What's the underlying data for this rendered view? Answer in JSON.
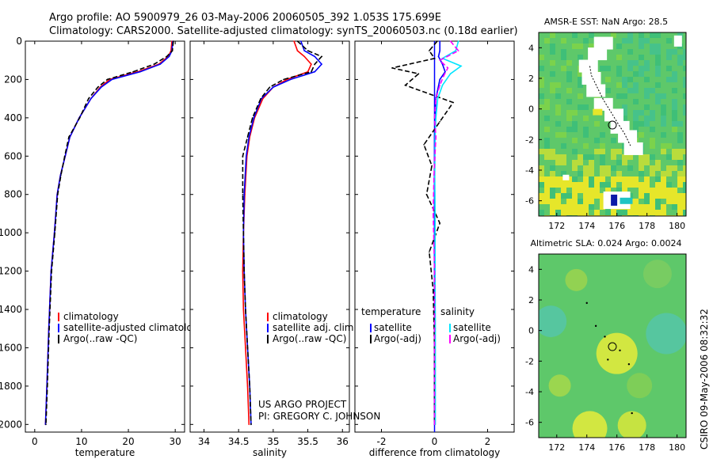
{
  "header": {
    "line1": "Argo profile: AO 5900979_26 03-May-2006 20060505_392 1.053S 175.699E",
    "line2": "Climatology: CARS2000. Satellite-adjusted climatology: synTS_20060503.nc (0.18d earlier)"
  },
  "credits": {
    "project": "US ARGO PROJECT",
    "pi": "PI: GREGORY C. JOHNSON",
    "stamp": "CSIRO 09-May-2006 08:32:32"
  },
  "colors": {
    "climatology": "#ff0000",
    "satellite": "#0000ff",
    "argo": "#000000",
    "salinity_satellite": "#00e5ff",
    "salinity_argo": "#ff00ff"
  },
  "chart_data": [
    {
      "type": "line",
      "id": "temperature",
      "xlabel": "temperature",
      "ylabel": "",
      "xlim": [
        -2,
        32
      ],
      "ylim": [
        2040,
        0
      ],
      "xticks": [
        0,
        10,
        20,
        30
      ],
      "yticks": [
        0,
        200,
        400,
        600,
        800,
        1000,
        1200,
        1400,
        1600,
        1800,
        2000
      ],
      "legend": [
        "climatology",
        "satellite-adjusted climatology",
        "Argo(..raw -QC)"
      ],
      "legend_placement": "lower-right",
      "series": [
        {
          "name": "climatology",
          "color": "#ff0000",
          "style": "solid",
          "x": [
            29.3,
            29.1,
            28.5,
            26.5,
            22,
            16,
            14,
            12,
            9.5,
            7.5,
            6.5,
            5.5,
            4.8,
            4.2,
            3.5,
            3,
            2.6,
            2.3
          ],
          "y": [
            0,
            50,
            80,
            120,
            160,
            200,
            240,
            300,
            400,
            500,
            600,
            700,
            800,
            1000,
            1200,
            1500,
            1800,
            2000
          ]
        },
        {
          "name": "satellite-adjusted climatology",
          "color": "#0000ff",
          "style": "solid",
          "x": [
            29.5,
            29.3,
            28.7,
            26.8,
            22.5,
            16.5,
            14.2,
            12,
            9.5,
            7.5,
            6.5,
            5.5,
            4.8,
            4.2,
            3.5,
            3,
            2.6,
            2.3
          ],
          "y": [
            0,
            50,
            80,
            120,
            160,
            200,
            240,
            300,
            400,
            500,
            600,
            700,
            800,
            1000,
            1200,
            1500,
            1800,
            2000
          ]
        },
        {
          "name": "Argo(..raw -QC)",
          "color": "#000000",
          "style": "dashed",
          "x": [
            29.6,
            29.4,
            28.2,
            25.5,
            21,
            15.5,
            13.5,
            11.5,
            9.6,
            7.3,
            6.4,
            5.6,
            4.9,
            4.3,
            3.6,
            3.1,
            2.7,
            2.4
          ],
          "y": [
            0,
            50,
            80,
            120,
            160,
            200,
            240,
            300,
            400,
            500,
            600,
            700,
            800,
            1000,
            1200,
            1500,
            1800,
            2000
          ]
        }
      ]
    },
    {
      "type": "line",
      "id": "salinity",
      "xlabel": "salinity",
      "xlim": [
        33.8,
        36.1
      ],
      "ylim": [
        2040,
        0
      ],
      "xticks": [
        34,
        34.5,
        35,
        35.5,
        36
      ],
      "legend": [
        "climatology",
        "satellite adj. clim.",
        "Argo(..raw -QC)"
      ],
      "legend_placement": "lower-right",
      "series": [
        {
          "name": "climatology",
          "color": "#ff0000",
          "style": "solid",
          "x": [
            35.3,
            35.35,
            35.45,
            35.55,
            35.5,
            35.2,
            35.0,
            34.85,
            34.73,
            34.66,
            34.62,
            34.59,
            34.57,
            34.56,
            34.57,
            34.6,
            34.63,
            34.65
          ],
          "y": [
            0,
            50,
            80,
            120,
            160,
            200,
            240,
            300,
            400,
            500,
            600,
            800,
            1000,
            1200,
            1400,
            1600,
            1800,
            2000
          ]
        },
        {
          "name": "satellite adj. clim.",
          "color": "#0000ff",
          "style": "solid",
          "x": [
            35.4,
            35.45,
            35.6,
            35.7,
            35.6,
            35.25,
            35.0,
            34.83,
            34.72,
            34.65,
            34.61,
            34.58,
            34.57,
            34.58,
            34.6,
            34.63,
            34.66,
            34.68
          ],
          "y": [
            0,
            50,
            80,
            120,
            160,
            200,
            240,
            300,
            400,
            500,
            600,
            800,
            1000,
            1200,
            1400,
            1600,
            1800,
            2000
          ]
        },
        {
          "name": "Argo(..raw -QC)",
          "color": "#000000",
          "style": "dashed",
          "x": [
            35.35,
            35.5,
            35.7,
            35.6,
            35.55,
            35.15,
            34.95,
            34.82,
            34.7,
            34.63,
            34.56,
            34.56,
            34.57,
            34.58,
            34.6,
            34.63,
            34.66,
            34.68
          ],
          "y": [
            0,
            50,
            80,
            120,
            160,
            200,
            240,
            300,
            400,
            500,
            600,
            800,
            1000,
            1200,
            1400,
            1600,
            1800,
            2000
          ]
        }
      ]
    },
    {
      "type": "line",
      "id": "difference",
      "xlabel": "difference from climatology",
      "xlim": [
        -3,
        3
      ],
      "ylim": [
        2040,
        0
      ],
      "xticks": [
        -2,
        0,
        2
      ],
      "legend": [
        "temperature",
        "satellite",
        "Argo(-adj)",
        "salinity",
        "satellite",
        "Argo(-adj)"
      ],
      "legend_placement": "lower-center",
      "series": [
        {
          "name": "temperature satellite",
          "color": "#0000ff",
          "style": "solid",
          "x": [
            0.2,
            0.2,
            0.15,
            0.3,
            0.4,
            0.2,
            0.05,
            0.02,
            0,
            0,
            0,
            0,
            0,
            0,
            0,
            0
          ],
          "y": [
            0,
            50,
            80,
            120,
            160,
            200,
            300,
            400,
            500,
            700,
            900,
            1200,
            1500,
            1700,
            1900,
            2000
          ]
        },
        {
          "name": "temperature Argo(-adj)",
          "color": "#000000",
          "style": "dashed",
          "x": [
            0.1,
            -0.2,
            0,
            -1.6,
            -0.6,
            -1.1,
            0.7,
            0.2,
            -0.4,
            -0.1,
            -0.3,
            0.2,
            -0.2,
            -0.05,
            0,
            0
          ],
          "y": [
            0,
            50,
            90,
            140,
            170,
            230,
            320,
            420,
            540,
            650,
            800,
            950,
            1100,
            1300,
            1600,
            2000
          ]
        },
        {
          "name": "salinity satellite",
          "color": "#00e5ff",
          "style": "solid",
          "x": [
            0.9,
            0.8,
            0.3,
            1.0,
            0.6,
            0.3,
            0.12,
            0.05,
            0.02,
            0.01,
            0.02,
            0.02,
            0.03,
            0.03,
            0.03,
            0.03
          ],
          "y": [
            0,
            50,
            90,
            130,
            170,
            230,
            300,
            400,
            500,
            700,
            900,
            1200,
            1500,
            1700,
            1900,
            2000
          ]
        },
        {
          "name": "salinity Argo(-adj)",
          "color": "#ff00ff",
          "style": "dashed",
          "x": [
            0.6,
            0.9,
            0.2,
            0.5,
            0.35,
            0.2,
            0.05,
            0.0,
            0.05,
            -0.02,
            -0.05,
            0.0,
            0.0,
            0.0,
            0.0,
            0.0
          ],
          "y": [
            0,
            50,
            100,
            140,
            180,
            230,
            300,
            400,
            500,
            700,
            900,
            1200,
            1500,
            1700,
            1900,
            2000
          ]
        }
      ]
    },
    {
      "type": "heatmap",
      "id": "sst_map",
      "title": "AMSR-E SST: NaN Argo: 28.5",
      "xlim": [
        170.8,
        180.6
      ],
      "ylim": [
        -7,
        5
      ],
      "xticks": [
        172,
        174,
        176,
        178,
        180
      ],
      "yticks": [
        -6,
        -4,
        -2,
        0,
        2,
        4
      ],
      "argo_position": {
        "lon": 175.699,
        "lat": -1.053
      }
    },
    {
      "type": "heatmap",
      "id": "sla_map",
      "title": "Altimetric SLA: 0.024 Argo: 0.0024",
      "xlim": [
        170.8,
        180.6
      ],
      "ylim": [
        -7,
        5
      ],
      "xticks": [
        172,
        174,
        176,
        178,
        180
      ],
      "yticks": [
        -6,
        -4,
        -2,
        0,
        2,
        4
      ],
      "argo_position": {
        "lon": 175.699,
        "lat": -1.053
      }
    }
  ]
}
